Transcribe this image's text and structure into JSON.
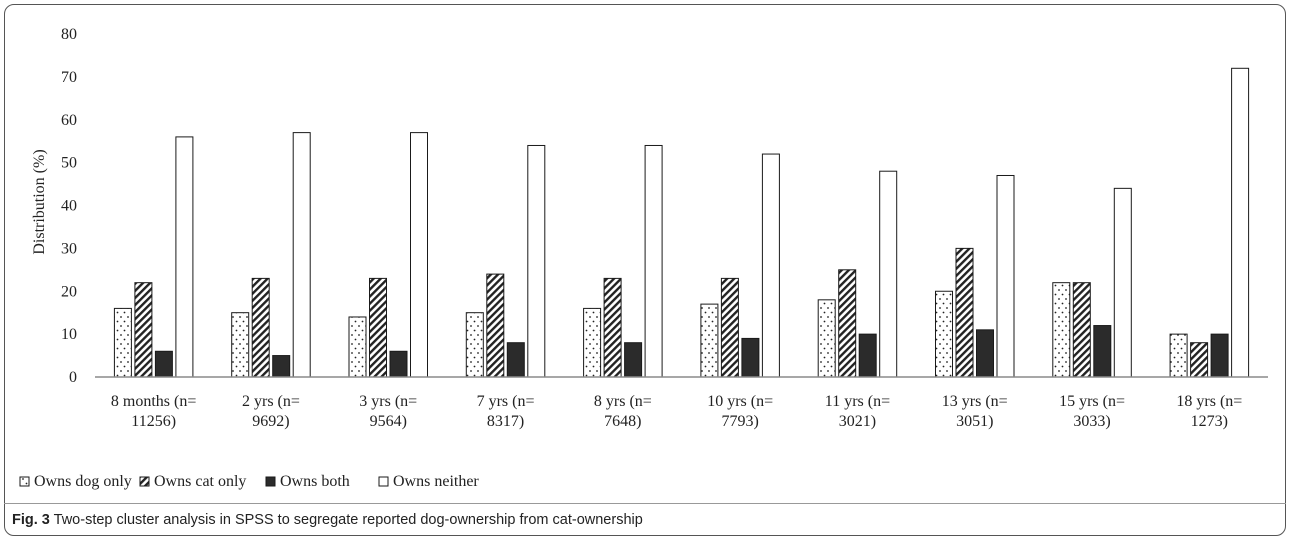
{
  "chart_data": {
    "type": "bar",
    "ylabel": "Distribution (%)",
    "ylim": [
      0,
      80
    ],
    "yticks": [
      "0",
      "10",
      "20",
      "30",
      "40",
      "50",
      "60",
      "70",
      "80"
    ],
    "categories": [
      [
        "8 months (n=",
        "11256)"
      ],
      [
        "2 yrs (n=",
        "9692)"
      ],
      [
        "3 yrs (n=",
        "9564)"
      ],
      [
        "7 yrs (n=",
        "8317)"
      ],
      [
        "8 yrs (n=",
        "7648)"
      ],
      [
        "10 yrs (n=",
        "7793)"
      ],
      [
        "11 yrs (n=",
        "3021)"
      ],
      [
        "13 yrs (n=",
        "3051)"
      ],
      [
        "15 yrs (n=",
        "3033)"
      ],
      [
        "18 yrs (n=",
        "1273)"
      ]
    ],
    "series": [
      {
        "name": "Owns dog only",
        "pattern": "dots",
        "values": [
          16,
          15,
          14,
          15,
          16,
          17,
          18,
          20,
          22,
          10
        ]
      },
      {
        "name": "Owns cat only",
        "pattern": "diagonal",
        "values": [
          22,
          23,
          23,
          24,
          23,
          23,
          25,
          30,
          22,
          8
        ]
      },
      {
        "name": "Owns both",
        "pattern": "solid",
        "values": [
          6,
          5,
          6,
          8,
          8,
          9,
          10,
          11,
          12,
          10
        ]
      },
      {
        "name": "Owns neither",
        "pattern": "empty",
        "values": [
          56,
          57,
          57,
          54,
          54,
          52,
          48,
          47,
          44,
          72
        ]
      }
    ],
    "legend_position": "bottom-left",
    "grid": false
  },
  "caption": {
    "label": "Fig. 3",
    "text": " Two-step cluster analysis in SPSS to segregate reported dog-ownership from cat-ownership"
  }
}
